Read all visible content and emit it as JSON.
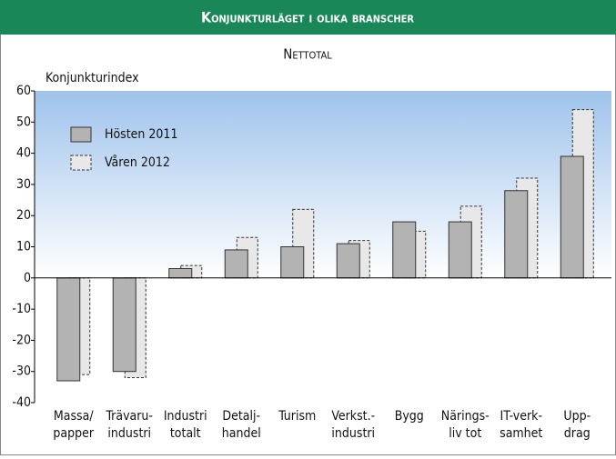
{
  "chart_data": {
    "type": "bar",
    "title": "Konjunkturläget i olika branscher",
    "subtitle": "Nettotal",
    "y_label": "Konjunkturindex",
    "categories": [
      [
        "Massa/",
        "papper"
      ],
      [
        "Trävaru-",
        "industri"
      ],
      [
        "Industri",
        "totalt"
      ],
      [
        "Detalj-",
        "handel"
      ],
      [
        "Turism"
      ],
      [
        "Verkst.-",
        "industri"
      ],
      [
        "Bygg"
      ],
      [
        "Närings-",
        "liv tot"
      ],
      [
        "IT-verk-",
        "samhet"
      ],
      [
        "Upp-",
        "drag"
      ]
    ],
    "series": [
      {
        "name": "Hösten 2011",
        "color": "#b3b3b3",
        "values": [
          -33,
          -30,
          3,
          9,
          10,
          11,
          18,
          18,
          28,
          39
        ]
      },
      {
        "name": "Våren 2012",
        "color": "#e8e8e8",
        "values": [
          -31,
          -32,
          4,
          13,
          22,
          12,
          15,
          23,
          32,
          54
        ]
      }
    ],
    "ylim": [
      -40,
      60
    ],
    "yticks": [
      -40,
      -30,
      -20,
      -10,
      0,
      10,
      20,
      30,
      40,
      50,
      60
    ],
    "grid": false,
    "legend": "top-left"
  }
}
